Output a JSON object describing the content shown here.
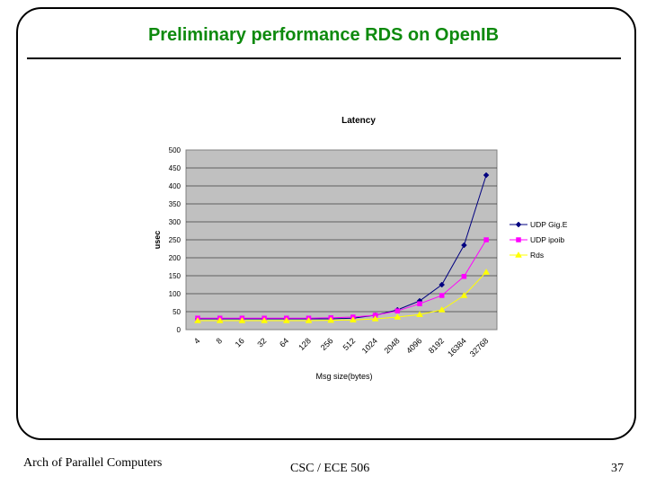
{
  "slide": {
    "title": "Preliminary performance RDS on OpenIB",
    "footer_left": "Arch of Parallel Computers",
    "footer_center": "CSC / ECE 506",
    "page_number": "37"
  },
  "colors": {
    "title": "#0e8a0e",
    "plot_bg": "#c0c0c0",
    "udp_gige": "#000080",
    "udp_ipoib": "#ff00ff",
    "rds": "#ffff00"
  },
  "chart_data": {
    "type": "line",
    "title": "Latency",
    "xlabel": "Msg size(bytes)",
    "ylabel": "usec",
    "ylim": [
      0,
      500
    ],
    "yticks": [
      "0",
      "50",
      "100",
      "150",
      "200",
      "250",
      "300",
      "350",
      "400",
      "450",
      "500"
    ],
    "categories": [
      "4",
      "8",
      "16",
      "32",
      "64",
      "128",
      "256",
      "512",
      "1024",
      "2048",
      "4096",
      "8192",
      "16384",
      "32768"
    ],
    "grid": true,
    "legend_position": "right",
    "series": [
      {
        "name": "UDP Gig.E",
        "color": "#000080",
        "marker": "diamond",
        "values": [
          30,
          30,
          30,
          30,
          30,
          30,
          30,
          32,
          40,
          55,
          80,
          125,
          235,
          430
        ]
      },
      {
        "name": "UDP ipoib",
        "color": "#ff00ff",
        "marker": "square",
        "values": [
          32,
          32,
          32,
          32,
          32,
          32,
          33,
          35,
          40,
          52,
          72,
          95,
          148,
          250
        ]
      },
      {
        "name": "Rds",
        "color": "#ffff00",
        "marker": "triangle",
        "values": [
          25,
          25,
          25,
          25,
          25,
          25,
          26,
          27,
          30,
          35,
          42,
          55,
          95,
          160
        ]
      }
    ]
  }
}
